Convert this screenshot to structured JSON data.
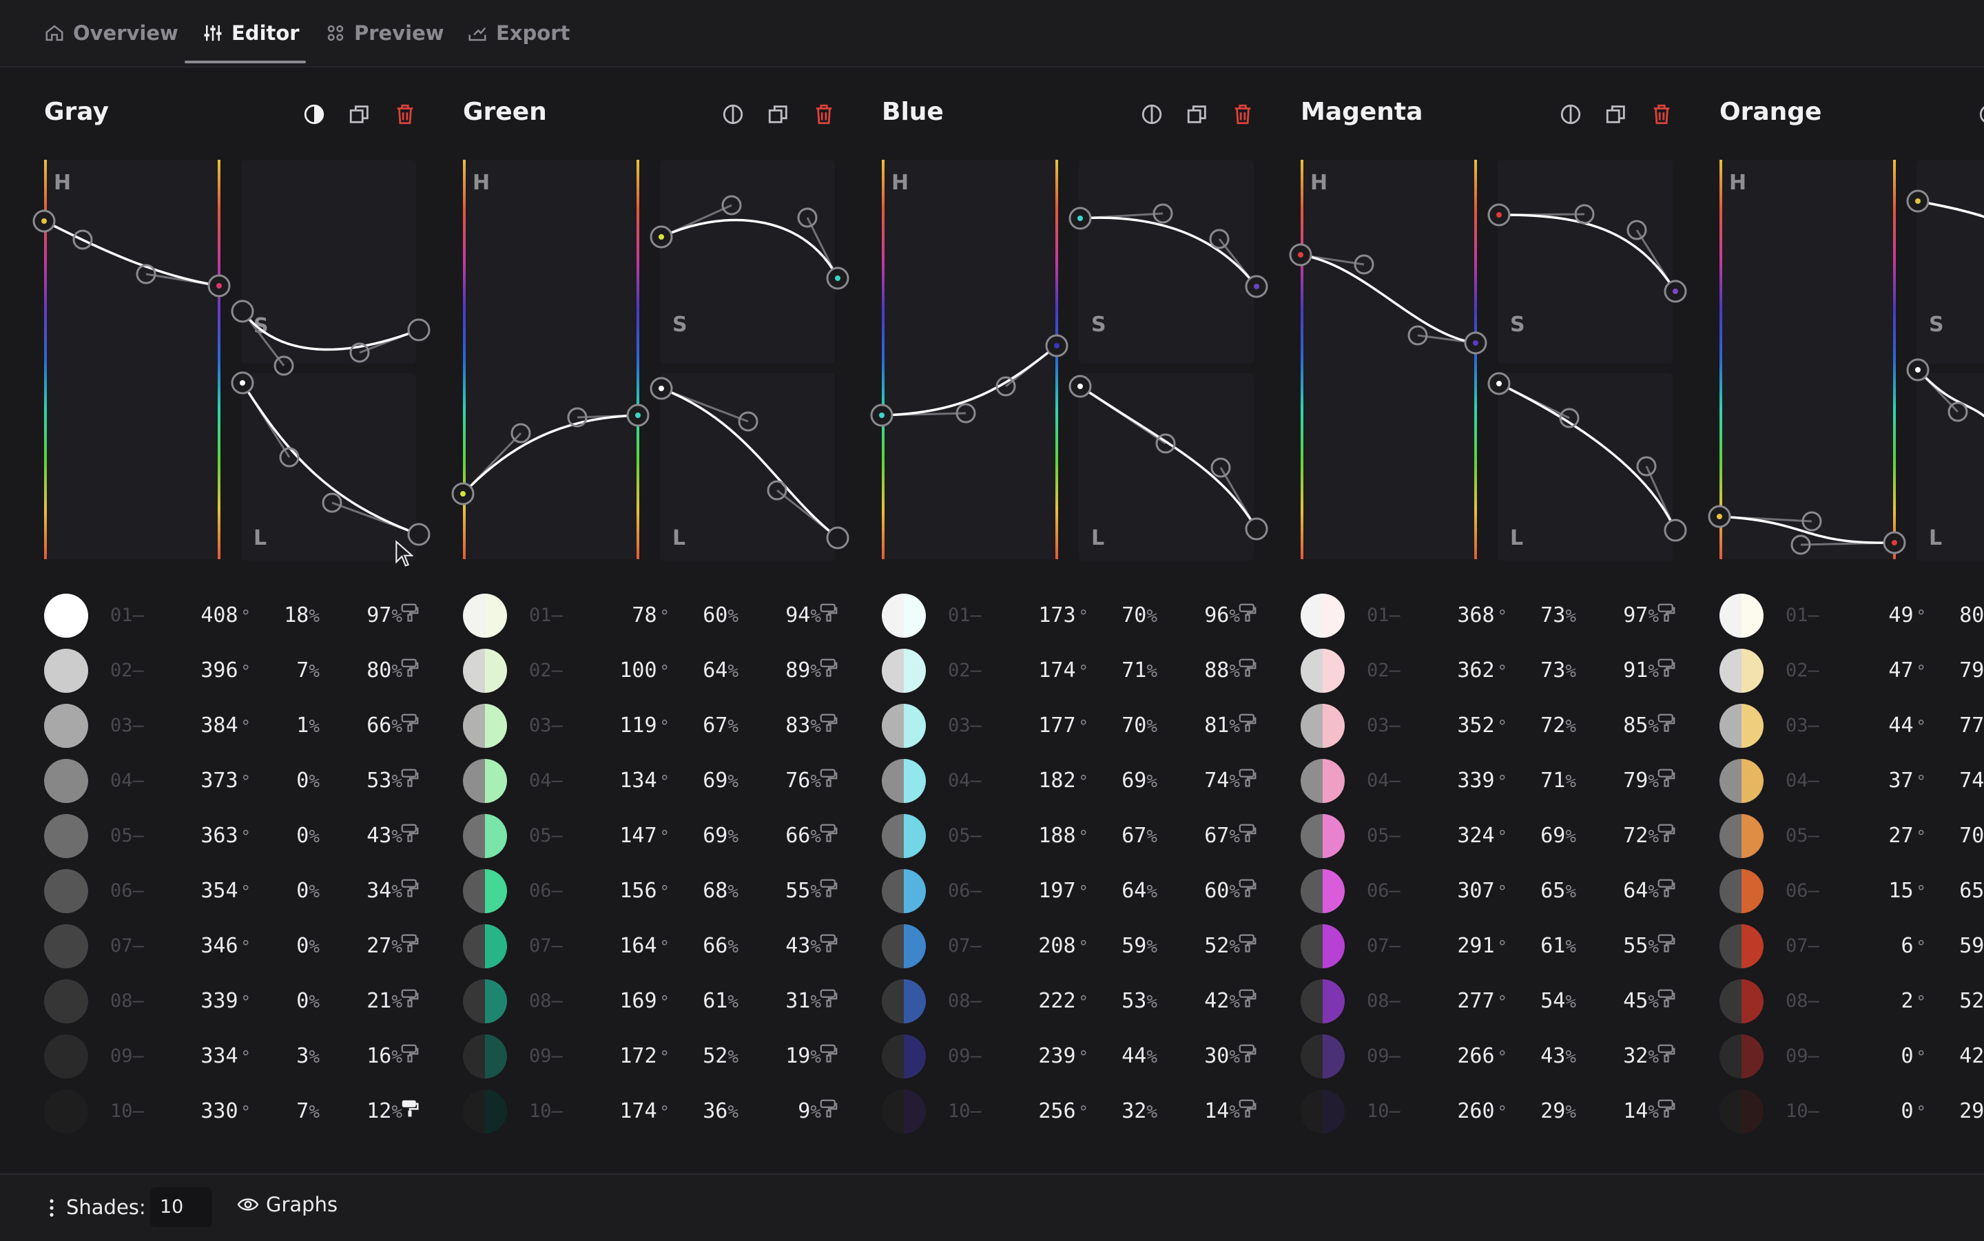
{
  "tabs": [
    {
      "label": "Overview",
      "icon": "home-icon",
      "active": false
    },
    {
      "label": "Editor",
      "icon": "sliders-icon",
      "active": true
    },
    {
      "label": "Preview",
      "icon": "grid-icon",
      "active": false
    },
    {
      "label": "Export",
      "icon": "export-icon",
      "active": false
    }
  ],
  "panel_labels": {
    "h": "H",
    "s": "S",
    "l": "L"
  },
  "colors": {
    "accent_delete": "#d9423b",
    "background": "#19181b",
    "panel": "#1e1d21"
  },
  "columns": [
    {
      "name": "Gray",
      "shades": [
        {
          "index": "01",
          "hue": "408",
          "sat": "18",
          "lig": "97",
          "left": "#ffffff",
          "right": "#ffffff"
        },
        {
          "index": "02",
          "hue": "396",
          "sat": "7",
          "lig": "80",
          "left": "#cccccc",
          "right": "#cccccc"
        },
        {
          "index": "03",
          "hue": "384",
          "sat": "1",
          "lig": "66",
          "left": "#a8a8a8",
          "right": "#a8a8a8"
        },
        {
          "index": "04",
          "hue": "373",
          "sat": "0",
          "lig": "53",
          "left": "#878787",
          "right": "#878787"
        },
        {
          "index": "05",
          "hue": "363",
          "sat": "0",
          "lig": "43",
          "left": "#6d6d6d",
          "right": "#6d6d6d"
        },
        {
          "index": "06",
          "hue": "354",
          "sat": "0",
          "lig": "34",
          "left": "#565656",
          "right": "#565656"
        },
        {
          "index": "07",
          "hue": "346",
          "sat": "0",
          "lig": "27",
          "left": "#444444",
          "right": "#444444"
        },
        {
          "index": "08",
          "hue": "339",
          "sat": "0",
          "lig": "21",
          "left": "#363636",
          "right": "#363636"
        },
        {
          "index": "09",
          "hue": "334",
          "sat": "3",
          "lig": "16",
          "left": "#2a2a2a",
          "right": "#2a2a2a"
        },
        {
          "index": "10",
          "hue": "330",
          "sat": "7",
          "lig": "12",
          "left": "#1f1e1f",
          "right": "#1f1e1f"
        }
      ]
    },
    {
      "name": "Green",
      "shades": [
        {
          "index": "01",
          "hue": "78",
          "sat": "60",
          "lig": "94",
          "left": "#f3f3ef",
          "right": "#f2f8e4"
        },
        {
          "index": "02",
          "hue": "100",
          "sat": "64",
          "lig": "89",
          "left": "#d6d6d4",
          "right": "#e0f4d2"
        },
        {
          "index": "03",
          "hue": "119",
          "sat": "67",
          "lig": "83",
          "left": "#b2b2b0",
          "right": "#c6f3c2"
        },
        {
          "index": "04",
          "hue": "134",
          "sat": "69",
          "lig": "76",
          "left": "#8e8e8e",
          "right": "#a8efb6"
        },
        {
          "index": "05",
          "hue": "147",
          "sat": "69",
          "lig": "66",
          "left": "#717171",
          "right": "#7ae5a8"
        },
        {
          "index": "06",
          "hue": "156",
          "sat": "68",
          "lig": "55",
          "left": "#5a5a5a",
          "right": "#45d796"
        },
        {
          "index": "07",
          "hue": "164",
          "sat": "66",
          "lig": "43",
          "left": "#464646",
          "right": "#27b588"
        },
        {
          "index": "08",
          "hue": "169",
          "sat": "61",
          "lig": "31",
          "left": "#373737",
          "right": "#1e8670"
        },
        {
          "index": "09",
          "hue": "172",
          "sat": "52",
          "lig": "19",
          "left": "#2b2b2b",
          "right": "#185348"
        },
        {
          "index": "10",
          "hue": "174",
          "sat": "36",
          "lig": "9",
          "left": "#1f1e1f",
          "right": "#0f2a26"
        }
      ]
    },
    {
      "name": "Blue",
      "shades": [
        {
          "index": "01",
          "hue": "173",
          "sat": "70",
          "lig": "96",
          "left": "#f3f3f3",
          "right": "#effdfb"
        },
        {
          "index": "02",
          "hue": "174",
          "sat": "71",
          "lig": "88",
          "left": "#d6d6d6",
          "right": "#cff6f2"
        },
        {
          "index": "03",
          "hue": "177",
          "sat": "70",
          "lig": "81",
          "left": "#b2b2b2",
          "right": "#b0f0ee"
        },
        {
          "index": "04",
          "hue": "182",
          "sat": "69",
          "lig": "74",
          "left": "#8e8e8e",
          "right": "#92e7ec"
        },
        {
          "index": "05",
          "hue": "188",
          "sat": "67",
          "lig": "67",
          "left": "#717171",
          "right": "#73d6e6"
        },
        {
          "index": "06",
          "hue": "197",
          "sat": "64",
          "lig": "60",
          "left": "#5a5a5a",
          "right": "#55b3df"
        },
        {
          "index": "07",
          "hue": "208",
          "sat": "59",
          "lig": "52",
          "left": "#464646",
          "right": "#3d86cc"
        },
        {
          "index": "08",
          "hue": "222",
          "sat": "53",
          "lig": "42",
          "left": "#373737",
          "right": "#3458a4"
        },
        {
          "index": "09",
          "hue": "239",
          "sat": "44",
          "lig": "30",
          "left": "#2b2b2b",
          "right": "#2d2b6e"
        },
        {
          "index": "10",
          "hue": "256",
          "sat": "32",
          "lig": "14",
          "left": "#1f1e1f",
          "right": "#231c33"
        }
      ]
    },
    {
      "name": "Magenta",
      "shades": [
        {
          "index": "01",
          "hue": "368",
          "sat": "73",
          "lig": "97",
          "left": "#f3f3f3",
          "right": "#fdf0f1"
        },
        {
          "index": "02",
          "hue": "362",
          "sat": "73",
          "lig": "91",
          "left": "#d6d6d6",
          "right": "#f9d5d9"
        },
        {
          "index": "03",
          "hue": "352",
          "sat": "72",
          "lig": "85",
          "left": "#b2b2b2",
          "right": "#f4bfca"
        },
        {
          "index": "04",
          "hue": "339",
          "sat": "71",
          "lig": "79",
          "left": "#8e8e8e",
          "right": "#ef9fc4"
        },
        {
          "index": "05",
          "hue": "324",
          "sat": "69",
          "lig": "72",
          "left": "#717171",
          "right": "#e882cf"
        },
        {
          "index": "06",
          "hue": "307",
          "sat": "65",
          "lig": "64",
          "left": "#5a5a5a",
          "right": "#d95cdb"
        },
        {
          "index": "07",
          "hue": "291",
          "sat": "61",
          "lig": "55",
          "left": "#464646",
          "right": "#b641d4"
        },
        {
          "index": "08",
          "hue": "277",
          "sat": "54",
          "lig": "45",
          "left": "#373737",
          "right": "#7f35b1"
        },
        {
          "index": "09",
          "hue": "266",
          "sat": "43",
          "lig": "32",
          "left": "#2b2b2b",
          "right": "#4a3177"
        },
        {
          "index": "10",
          "hue": "260",
          "sat": "29",
          "lig": "14",
          "left": "#1f1e1f",
          "right": "#221c30"
        }
      ]
    },
    {
      "name": "Orange",
      "shades": [
        {
          "index": "01",
          "hue": "49",
          "sat": "80",
          "lig": "",
          "left": "#f3f3f3",
          "right": "#fdfaee"
        },
        {
          "index": "02",
          "hue": "47",
          "sat": "79",
          "lig": "",
          "left": "#d6d6d6",
          "right": "#f3e2ad"
        },
        {
          "index": "03",
          "hue": "44",
          "sat": "77",
          "lig": "",
          "left": "#b2b2b2",
          "right": "#efcf7d"
        },
        {
          "index": "04",
          "hue": "37",
          "sat": "74",
          "lig": "",
          "left": "#8e8e8e",
          "right": "#e7b660"
        },
        {
          "index": "05",
          "hue": "27",
          "sat": "70",
          "lig": "",
          "left": "#717171",
          "right": "#df8c45"
        },
        {
          "index": "06",
          "hue": "15",
          "sat": "65",
          "lig": "",
          "left": "#5a5a5a",
          "right": "#d5632f"
        },
        {
          "index": "07",
          "hue": "6",
          "sat": "59",
          "lig": "",
          "left": "#464646",
          "right": "#bf3a27"
        },
        {
          "index": "08",
          "hue": "2",
          "sat": "52",
          "lig": "",
          "left": "#373737",
          "right": "#9a2b24"
        },
        {
          "index": "09",
          "hue": "0",
          "sat": "42",
          "lig": "",
          "left": "#2b2b2b",
          "right": "#682222"
        },
        {
          "index": "10",
          "hue": "0",
          "sat": "29",
          "lig": "",
          "left": "#1f1e1f",
          "right": "#2c1a1a"
        }
      ]
    }
  ],
  "footer": {
    "shades_label": "Shades:",
    "shades_value": "10",
    "graphs_label": "Graphs"
  }
}
